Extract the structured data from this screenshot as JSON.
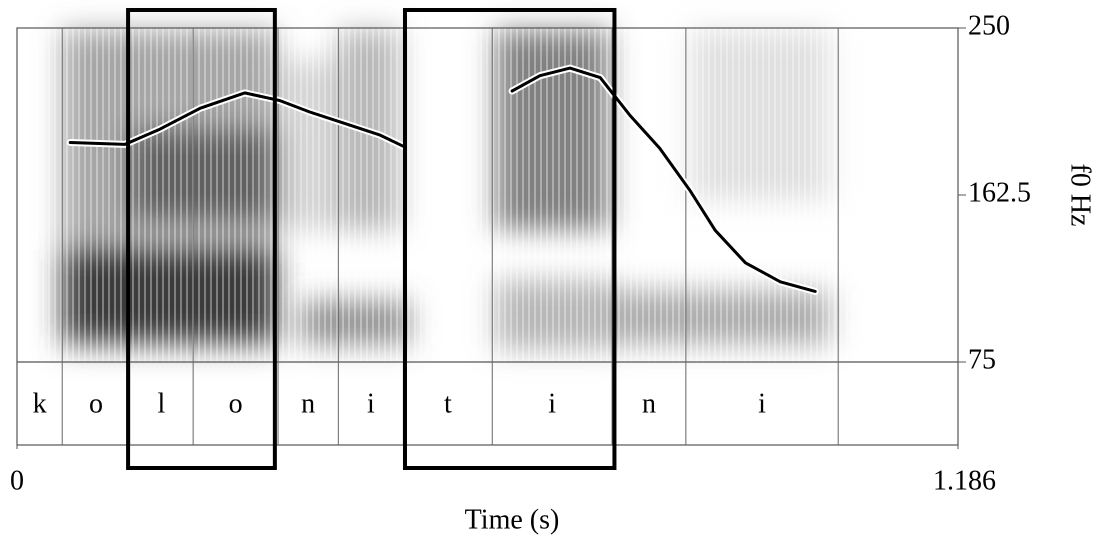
{
  "chart_data": {
    "type": "spectrogram",
    "xlabel": "Time (s)",
    "ylabel": "f0 Hz",
    "xlim": [
      0,
      1.186
    ],
    "xticks": [
      0,
      1.186
    ],
    "ylim": [
      75,
      250
    ],
    "yticks": [
      75,
      162.5,
      250
    ],
    "boundaries": [
      0.057,
      0.142,
      0.222,
      0.329,
      0.405,
      0.487,
      0.599,
      0.75,
      0.843,
      1.035
    ],
    "segment_labels": [
      "k",
      "o",
      "l",
      "o",
      "n",
      "i",
      "t",
      "i",
      "n",
      "i",
      null
    ],
    "highlights": [
      [
        0.14,
        0.325
      ],
      [
        0.489,
        0.753
      ]
    ],
    "f0": {
      "color": "#000000",
      "x": [
        0.067,
        0.136,
        0.18,
        0.231,
        0.287,
        0.331,
        0.369,
        0.413,
        0.457,
        0.487,
        null,
        0.624,
        0.659,
        0.697,
        0.735,
        0.773,
        0.81,
        0.848,
        0.88,
        0.918,
        0.962,
        1.006
      ],
      "values": [
        190,
        189,
        197,
        208,
        216,
        212,
        206,
        200,
        194,
        188,
        null,
        217,
        225,
        229,
        224,
        204,
        187,
        165,
        144,
        127,
        117,
        112
      ]
    }
  }
}
